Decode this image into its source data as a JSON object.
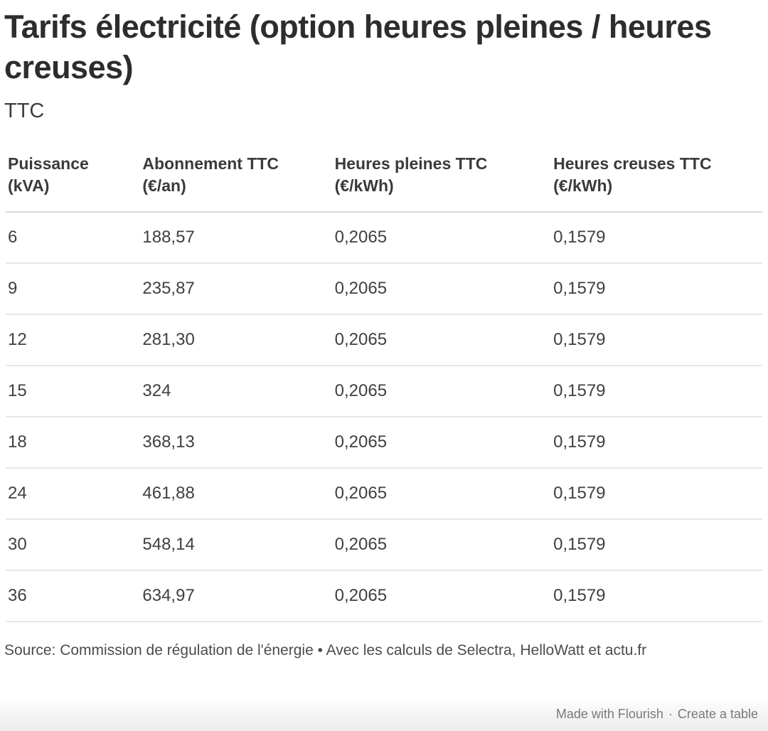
{
  "page": {
    "title": "Tarifs électricité (option heures pleines / heures creuses)",
    "subtitle": "TTC"
  },
  "table": {
    "columns": [
      {
        "line1": "Puissance",
        "line2": "(kVA)"
      },
      {
        "line1": "Abonnement TTC",
        "line2": "(€/an)"
      },
      {
        "line1": "Heures pleines TTC",
        "line2": "(€/kWh)"
      },
      {
        "line1": "Heures creuses TTC",
        "line2": "(€/kWh)"
      }
    ],
    "rows": [
      [
        "6",
        "188,57",
        "0,2065",
        "0,1579"
      ],
      [
        "9",
        "235,87",
        "0,2065",
        "0,1579"
      ],
      [
        "12",
        "281,30",
        "0,2065",
        "0,1579"
      ],
      [
        "15",
        "324",
        "0,2065",
        "0,1579"
      ],
      [
        "18",
        "368,13",
        "0,2065",
        "0,1579"
      ],
      [
        "24",
        "461,88",
        "0,2065",
        "0,1579"
      ],
      [
        "30",
        "548,14",
        "0,2065",
        "0,1579"
      ],
      [
        "36",
        "634,97",
        "0,2065",
        "0,1579"
      ]
    ]
  },
  "footer": {
    "source": "Source: Commission de régulation de l'énergie • Avec les calculs de Selectra, HelloWatt et actu.fr",
    "credit_made_with": "Made with Flourish",
    "credit_separator": "·",
    "credit_create": "Create a table"
  },
  "colors": {
    "title_text": "#2d2d2d",
    "body_text": "#404040",
    "header_divider": "#d8d8d8",
    "row_divider": "#e7e7e7",
    "credit_text": "#7a7a7a"
  },
  "chart_data": {
    "type": "table",
    "title": "Tarifs électricité (option heures pleines / heures creuses)",
    "subtitle": "TTC",
    "columns": [
      "Puissance (kVA)",
      "Abonnement TTC (€/an)",
      "Heures pleines TTC (€/kWh)",
      "Heures creuses TTC (€/kWh)"
    ],
    "rows": [
      {
        "puissance_kva": 6,
        "abonnement_ttc_eur_an": "188,57",
        "heures_pleines_ttc_eur_kwh": "0,2065",
        "heures_creuses_ttc_eur_kwh": "0,1579"
      },
      {
        "puissance_kva": 9,
        "abonnement_ttc_eur_an": "235,87",
        "heures_pleines_ttc_eur_kwh": "0,2065",
        "heures_creuses_ttc_eur_kwh": "0,1579"
      },
      {
        "puissance_kva": 12,
        "abonnement_ttc_eur_an": "281,30",
        "heures_pleines_ttc_eur_kwh": "0,2065",
        "heures_creuses_ttc_eur_kwh": "0,1579"
      },
      {
        "puissance_kva": 15,
        "abonnement_ttc_eur_an": "324",
        "heures_pleines_ttc_eur_kwh": "0,2065",
        "heures_creuses_ttc_eur_kwh": "0,1579"
      },
      {
        "puissance_kva": 18,
        "abonnement_ttc_eur_an": "368,13",
        "heures_pleines_ttc_eur_kwh": "0,2065",
        "heures_creuses_ttc_eur_kwh": "0,1579"
      },
      {
        "puissance_kva": 24,
        "abonnement_ttc_eur_an": "461,88",
        "heures_pleines_ttc_eur_kwh": "0,2065",
        "heures_creuses_ttc_eur_kwh": "0,1579"
      },
      {
        "puissance_kva": 30,
        "abonnement_ttc_eur_an": "548,14",
        "heures_pleines_ttc_eur_kwh": "0,2065",
        "heures_creuses_ttc_eur_kwh": "0,1579"
      },
      {
        "puissance_kva": 36,
        "abonnement_ttc_eur_an": "634,97",
        "heures_pleines_ttc_eur_kwh": "0,2065",
        "heures_creuses_ttc_eur_kwh": "0,1579"
      }
    ],
    "source": "Source: Commission de régulation de l'énergie • Avec les calculs de Selectra, HelloWatt et actu.fr",
    "credit": "Made with Flourish · Create a table"
  }
}
